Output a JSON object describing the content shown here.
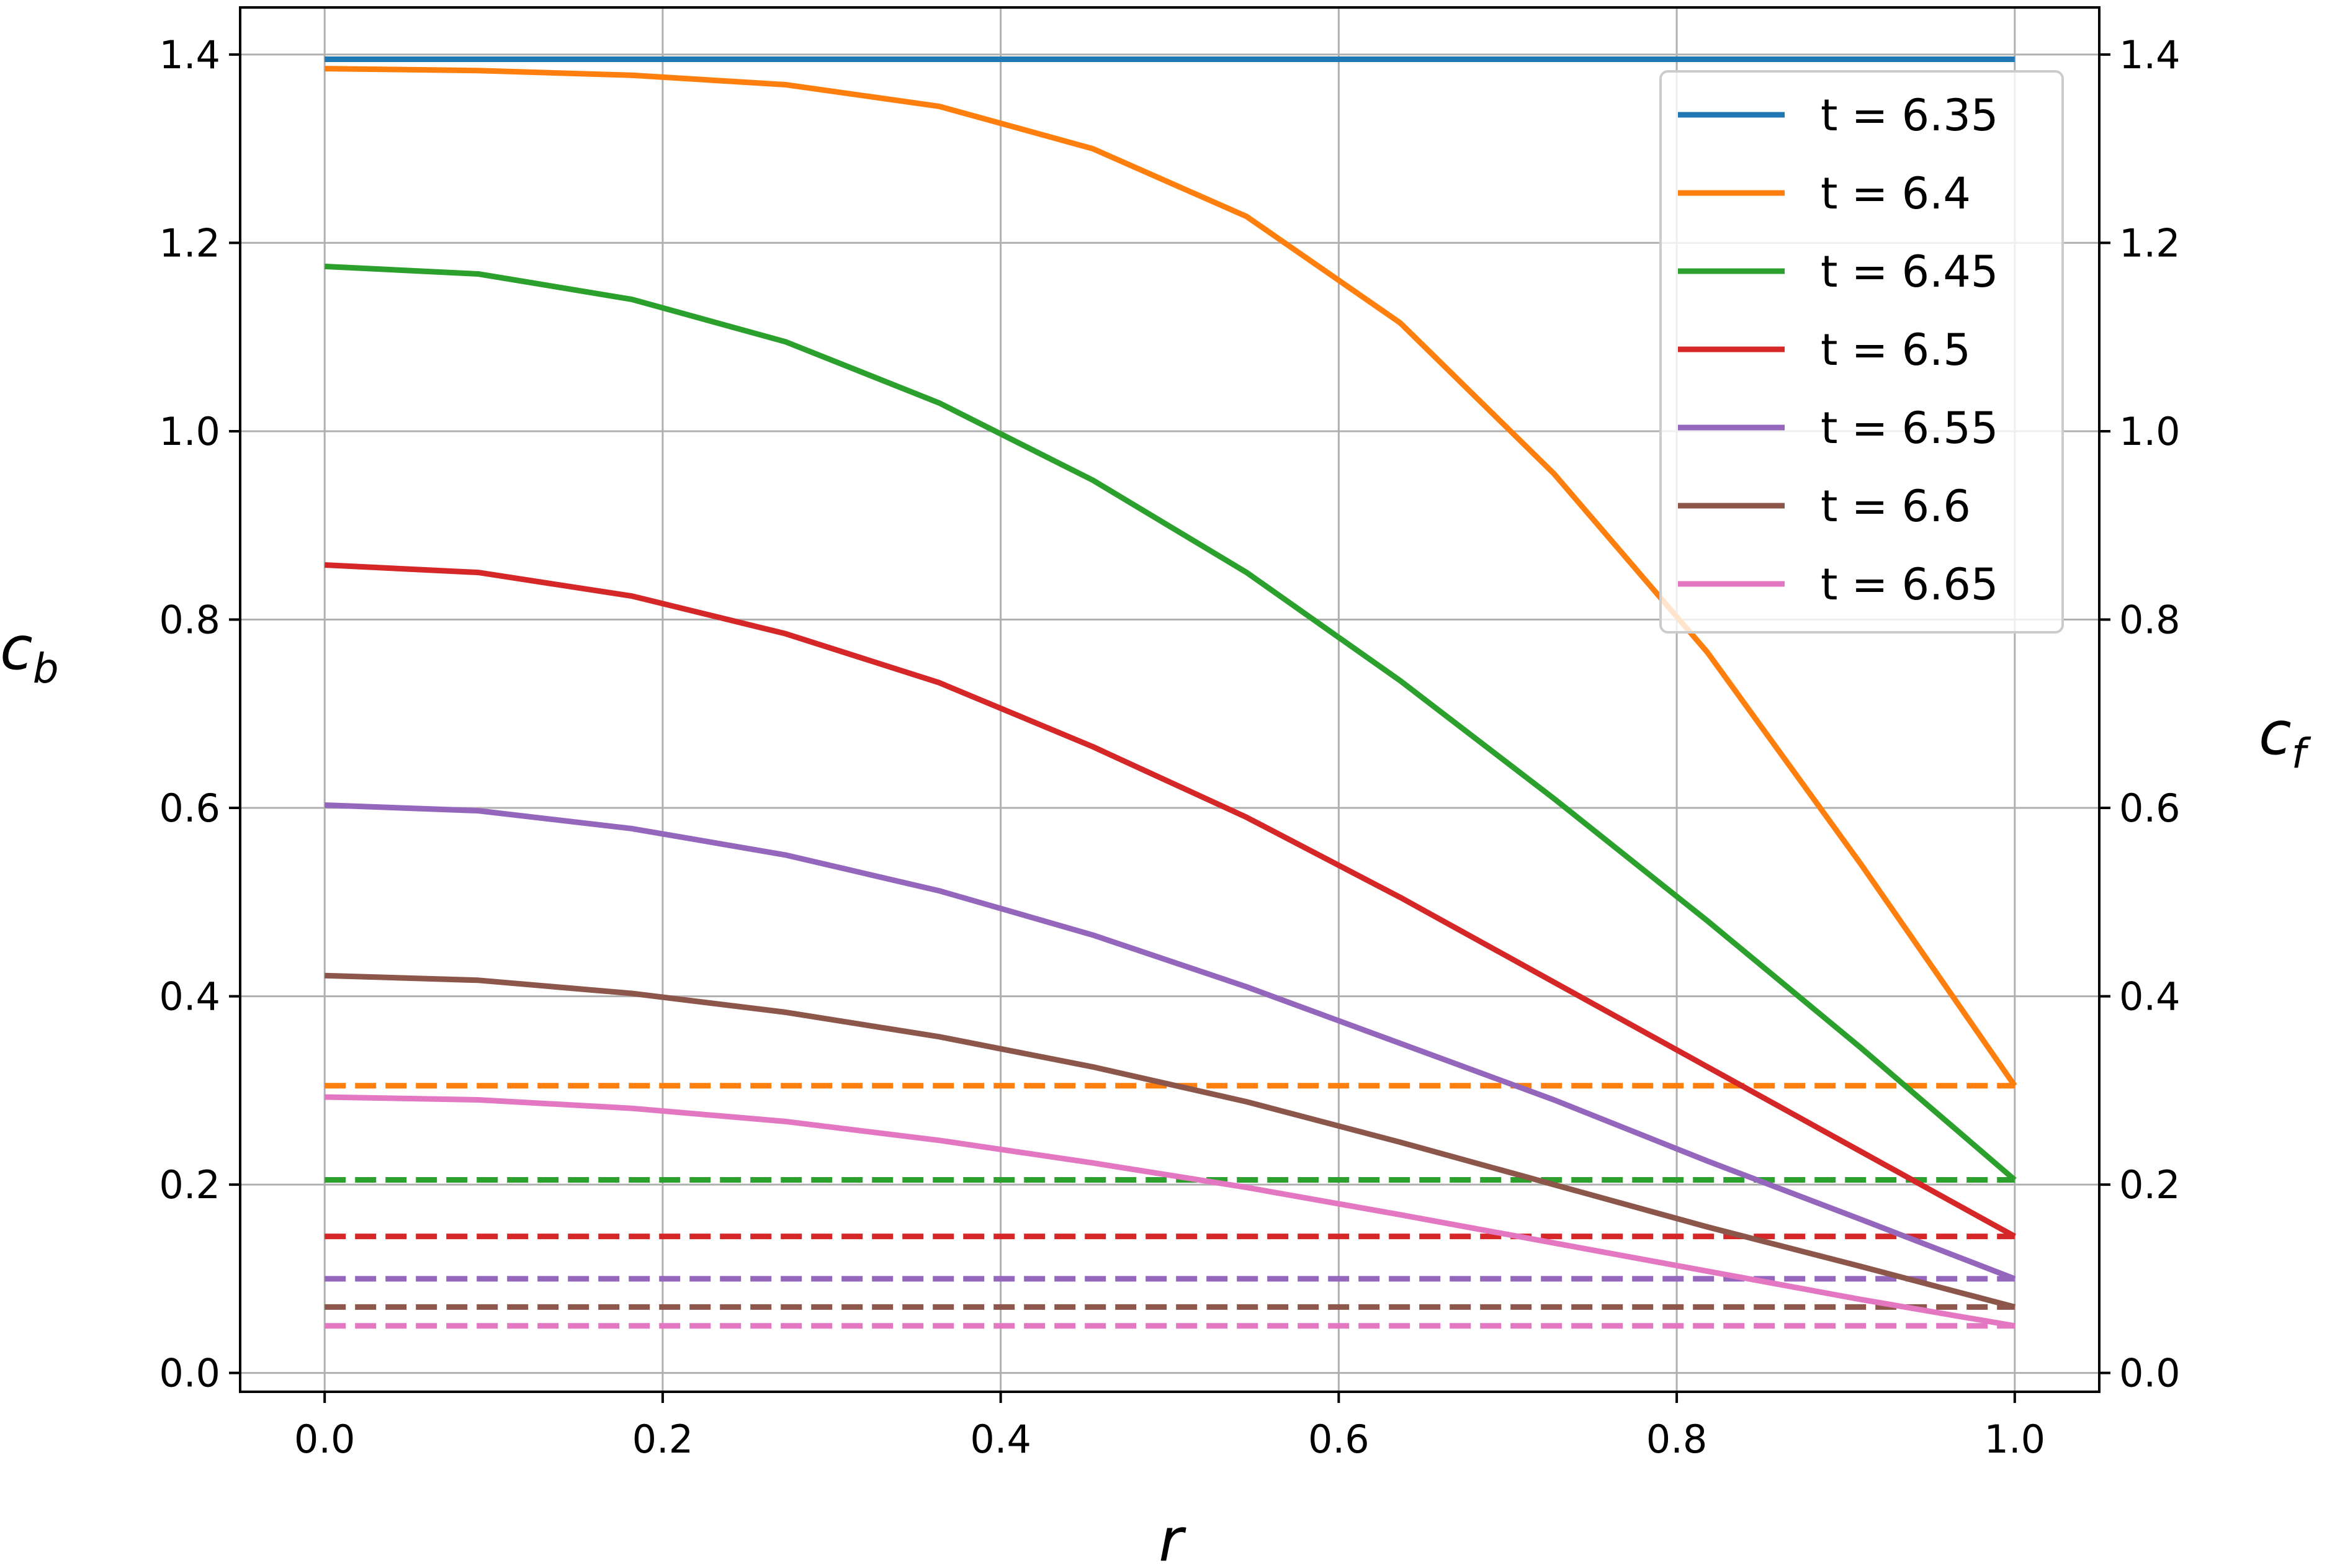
{
  "chart_data": {
    "type": "line",
    "title": "",
    "xlabel": "r",
    "ylabel": {
      "main": "c",
      "sub": "b"
    },
    "y2label": {
      "main": "c",
      "sub": "f"
    },
    "xlim": [
      -0.05,
      1.05
    ],
    "ylim": [
      -0.02,
      1.45
    ],
    "y2lim": [
      -0.02,
      1.45
    ],
    "xticks": [
      "0.0",
      "0.2",
      "0.4",
      "0.6",
      "0.8",
      "1.0"
    ],
    "yticks": [
      "0.0",
      "0.2",
      "0.4",
      "0.6",
      "0.8",
      "1.0",
      "1.2",
      "1.4"
    ],
    "y2ticks": [
      "0.0",
      "0.2",
      "0.4",
      "0.6",
      "0.8",
      "1.0",
      "1.2",
      "1.4"
    ],
    "grid": true,
    "legend_position": "top-right",
    "x": [
      0.0,
      0.0909,
      0.1818,
      0.2727,
      0.3636,
      0.4545,
      0.5455,
      0.6364,
      0.7273,
      0.8182,
      0.9091,
      1.0
    ],
    "series": [
      {
        "name": "t = 6.35",
        "color": "#1f77b4",
        "style": "solid",
        "axis": "left",
        "values": [
          1.395,
          1.395,
          1.395,
          1.395,
          1.395,
          1.395,
          1.395,
          1.395,
          1.395,
          1.395,
          1.395,
          1.395
        ]
      },
      {
        "name": "t = 6.4",
        "color": "#ff7f0e",
        "style": "solid",
        "axis": "left",
        "values": [
          1.385,
          1.383,
          1.378,
          1.368,
          1.345,
          1.3,
          1.228,
          1.115,
          0.955,
          0.765,
          0.54,
          0.305
        ]
      },
      {
        "name": "t = 6.45",
        "color": "#2ca02c",
        "style": "solid",
        "axis": "left",
        "values": [
          1.175,
          1.167,
          1.14,
          1.095,
          1.03,
          0.948,
          0.85,
          0.735,
          0.61,
          0.48,
          0.345,
          0.205
        ]
      },
      {
        "name": "t = 6.5",
        "color": "#d62728",
        "style": "solid",
        "axis": "left",
        "values": [
          0.858,
          0.85,
          0.825,
          0.785,
          0.733,
          0.665,
          0.59,
          0.505,
          0.415,
          0.325,
          0.235,
          0.145
        ]
      },
      {
        "name": "t = 6.55",
        "color": "#9467bd",
        "style": "solid",
        "axis": "left",
        "values": [
          0.603,
          0.597,
          0.578,
          0.55,
          0.512,
          0.465,
          0.41,
          0.35,
          0.29,
          0.225,
          0.163,
          0.1
        ]
      },
      {
        "name": "t = 6.6",
        "color": "#8c564b",
        "style": "solid",
        "axis": "left",
        "values": [
          0.422,
          0.417,
          0.403,
          0.383,
          0.357,
          0.325,
          0.288,
          0.245,
          0.2,
          0.155,
          0.113,
          0.07
        ]
      },
      {
        "name": "t = 6.65",
        "color": "#e377c2",
        "style": "solid",
        "axis": "left",
        "values": [
          0.293,
          0.29,
          0.281,
          0.267,
          0.247,
          0.223,
          0.197,
          0.168,
          0.138,
          0.108,
          0.078,
          0.05
        ]
      },
      {
        "color": "#ff7f0e",
        "style": "dashed",
        "axis": "right",
        "values": [
          0.305,
          0.305,
          0.305,
          0.305,
          0.305,
          0.305,
          0.305,
          0.305,
          0.305,
          0.305,
          0.305,
          0.305
        ]
      },
      {
        "color": "#2ca02c",
        "style": "dashed",
        "axis": "right",
        "values": [
          0.205,
          0.205,
          0.205,
          0.205,
          0.205,
          0.205,
          0.205,
          0.205,
          0.205,
          0.205,
          0.205,
          0.205
        ]
      },
      {
        "color": "#d62728",
        "style": "dashed",
        "axis": "right",
        "values": [
          0.145,
          0.145,
          0.145,
          0.145,
          0.145,
          0.145,
          0.145,
          0.145,
          0.145,
          0.145,
          0.145,
          0.145
        ]
      },
      {
        "color": "#9467bd",
        "style": "dashed",
        "axis": "right",
        "values": [
          0.1,
          0.1,
          0.1,
          0.1,
          0.1,
          0.1,
          0.1,
          0.1,
          0.1,
          0.1,
          0.1,
          0.1
        ]
      },
      {
        "color": "#8c564b",
        "style": "dashed",
        "axis": "right",
        "values": [
          0.07,
          0.07,
          0.07,
          0.07,
          0.07,
          0.07,
          0.07,
          0.07,
          0.07,
          0.07,
          0.07,
          0.07
        ]
      },
      {
        "color": "#e377c2",
        "style": "dashed",
        "axis": "right",
        "values": [
          0.05,
          0.05,
          0.05,
          0.05,
          0.05,
          0.05,
          0.05,
          0.05,
          0.05,
          0.05,
          0.05,
          0.05
        ]
      }
    ]
  }
}
